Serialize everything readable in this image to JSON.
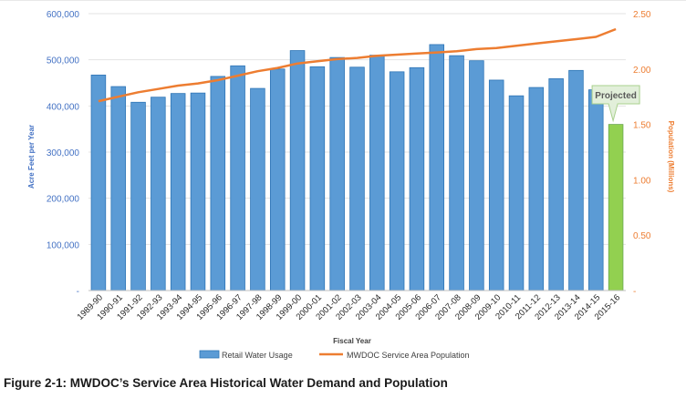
{
  "chart_data": {
    "type": "bar",
    "xlabel": "Fiscal Year",
    "ylabel": "Acre Feet per Year",
    "y2label": "Population (Millions)",
    "ylim": [
      0,
      600000
    ],
    "y2lim": [
      0,
      2.5
    ],
    "yticks": [
      "-",
      "100,000",
      "200,000",
      "300,000",
      "400,000",
      "500,000",
      "600,000"
    ],
    "y2ticks": [
      "-",
      "0.50",
      "1.00",
      "1.50",
      "2.00",
      "2.50"
    ],
    "categories": [
      "1989-90",
      "1990-91",
      "1991-92",
      "1992-93",
      "1993-94",
      "1994-95",
      "1995-96",
      "1996-97",
      "1997-98",
      "1998-99",
      "1999-00",
      "2000-01",
      "2001-02",
      "2002-03",
      "2003-04",
      "2004-05",
      "2005-06",
      "2006-07",
      "2007-08",
      "2008-09",
      "2009-10",
      "2010-11",
      "2011-12",
      "2012-13",
      "2013-14",
      "2014-15",
      "2015-16"
    ],
    "series": [
      {
        "name": "Retail Water Usage",
        "type": "bar",
        "color": "#5b9bd5",
        "highlight_color": "#92d050",
        "values": [
          467000,
          442000,
          408000,
          419000,
          427000,
          428000,
          464000,
          487000,
          438000,
          480000,
          520000,
          485000,
          505000,
          484000,
          510000,
          474000,
          483000,
          533000,
          509000,
          498000,
          456000,
          422000,
          440000,
          459000,
          477000,
          435000,
          360000
        ]
      },
      {
        "name": "MWDOC Service Area Population",
        "type": "line",
        "axis": "y2",
        "color": "#ed7d31",
        "values": [
          1.71,
          1.75,
          1.79,
          1.82,
          1.85,
          1.87,
          1.9,
          1.94,
          1.98,
          2.01,
          2.05,
          2.07,
          2.09,
          2.1,
          2.12,
          2.13,
          2.14,
          2.15,
          2.16,
          2.18,
          2.19,
          2.21,
          2.23,
          2.25,
          2.27,
          2.29,
          2.36
        ]
      }
    ],
    "annotation": {
      "text": "Projected",
      "category": "2015-16"
    },
    "legend_position": "bottom"
  },
  "caption": "Figure 2-1: MWDOC’s Service Area Historical Water Demand and Population"
}
